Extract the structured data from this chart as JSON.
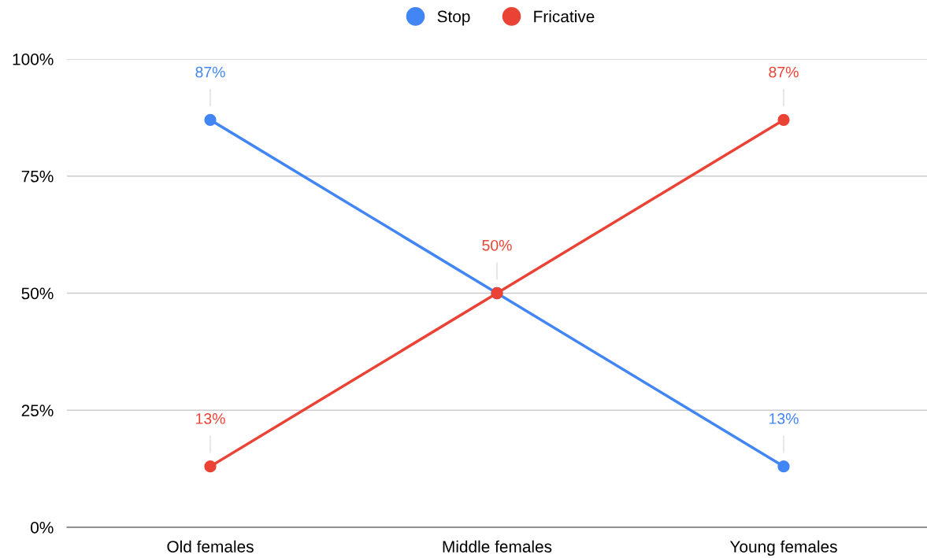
{
  "chart_data": {
    "type": "line",
    "categories": [
      "Old females",
      "Middle females",
      "Young females"
    ],
    "series": [
      {
        "name": "Stop",
        "color": "#4285f4",
        "values": [
          87,
          50,
          13
        ],
        "value_labels": [
          "87%",
          null,
          "13%"
        ]
      },
      {
        "name": "Fricative",
        "color": "#ea4335",
        "values": [
          13,
          50,
          87
        ],
        "value_labels": [
          "13%",
          "50%",
          "87%"
        ]
      }
    ],
    "ylim": [
      0,
      100
    ],
    "yticks": [
      {
        "value": 0,
        "label": "0%"
      },
      {
        "value": 25,
        "label": "25%"
      },
      {
        "value": 50,
        "label": "50%"
      },
      {
        "value": 75,
        "label": "75%"
      },
      {
        "value": 100,
        "label": "100%"
      }
    ],
    "grid": "y",
    "legend": "top",
    "marker": "circle",
    "line_style": "solid"
  }
}
